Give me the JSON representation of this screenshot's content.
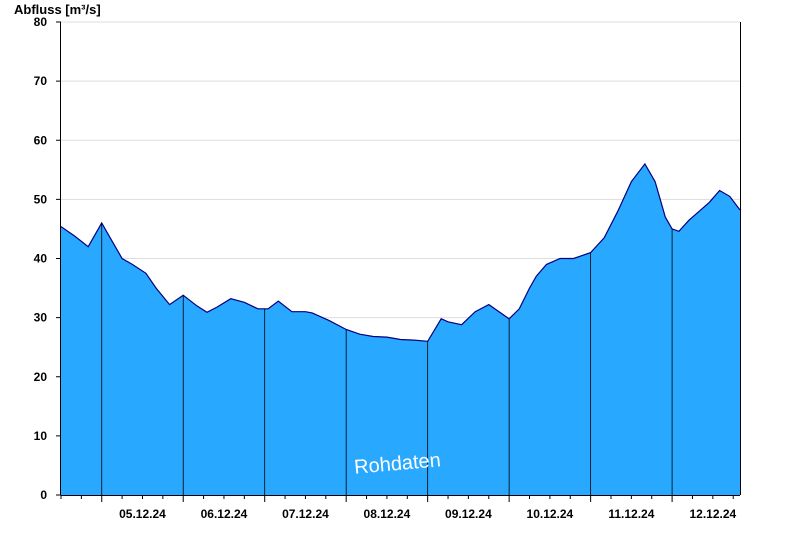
{
  "chart_data": {
    "type": "area",
    "ylabel": "Abfluss [m³/s]",
    "xlabel": "",
    "ylim": [
      0,
      80
    ],
    "yticks": [
      0,
      10,
      20,
      30,
      40,
      50,
      60,
      70,
      80
    ],
    "xlim": [
      "2024-12-04T12:00",
      "2024-12-12T20:00"
    ],
    "day_labels": [
      "05.12.24",
      "06.12.24",
      "07.12.24",
      "08.12.24",
      "09.12.24",
      "10.12.24",
      "11.12.24",
      "12.12.24"
    ],
    "grid": true,
    "legend": "none",
    "watermark": "Rohdaten",
    "colors": {
      "fill": "#29a8ff",
      "line": "#000080",
      "grid": "#dddddd"
    },
    "x": [
      "2024-12-04T12:00",
      "2024-12-04T16:00",
      "2024-12-04T20:00",
      "2024-12-05T00:00",
      "2024-12-05T03:00",
      "2024-12-05T06:00",
      "2024-12-05T09:00",
      "2024-12-05T13:00",
      "2024-12-05T16:00",
      "2024-12-05T20:00",
      "2024-12-06T00:00",
      "2024-12-06T04:00",
      "2024-12-06T07:00",
      "2024-12-06T10:00",
      "2024-12-06T14:00",
      "2024-12-06T18:00",
      "2024-12-06T22:00",
      "2024-12-07T01:00",
      "2024-12-07T04:00",
      "2024-12-07T08:00",
      "2024-12-07T12:00",
      "2024-12-07T14:00",
      "2024-12-07T19:00",
      "2024-12-08T00:00",
      "2024-12-08T04:00",
      "2024-12-08T08:00",
      "2024-12-08T12:00",
      "2024-12-08T16:00",
      "2024-12-08T20:00",
      "2024-12-09T00:00",
      "2024-12-09T04:00",
      "2024-12-09T06:00",
      "2024-12-09T10:00",
      "2024-12-09T14:00",
      "2024-12-09T18:00",
      "2024-12-10T00:00",
      "2024-12-10T03:00",
      "2024-12-10T06:00",
      "2024-12-10T08:00",
      "2024-12-10T11:00",
      "2024-12-10T15:00",
      "2024-12-10T19:00",
      "2024-12-11T00:00",
      "2024-12-11T04:00",
      "2024-12-11T08:00",
      "2024-12-11T12:00",
      "2024-12-11T16:00",
      "2024-12-11T19:00",
      "2024-12-11T22:00",
      "2024-12-12T00:00",
      "2024-12-12T02:00",
      "2024-12-12T05:00",
      "2024-12-12T08:00",
      "2024-12-12T11:00",
      "2024-12-12T14:00",
      "2024-12-12T17:00",
      "2024-12-12T20:00"
    ],
    "series": [
      {
        "values": [
          45.4,
          43.8,
          42.0,
          46.0,
          43.0,
          40.0,
          39.0,
          37.5,
          35.0,
          32.2,
          33.8,
          32.0,
          30.9,
          31.8,
          33.2,
          32.6,
          31.5,
          31.5,
          32.8,
          31.0,
          31.0,
          30.8,
          29.5,
          28.0,
          27.2,
          26.8,
          26.7,
          26.3,
          26.2,
          26.0,
          29.8,
          29.3,
          28.8,
          31.0,
          32.2,
          29.8,
          31.5,
          35.0,
          37.0,
          39.0,
          40.0,
          40.0,
          41.0,
          43.5,
          48.0,
          53.0,
          56.0,
          53.0,
          47.0,
          45.0,
          44.6,
          46.5,
          48.0,
          49.5,
          51.5,
          50.5,
          48.2
        ]
      }
    ]
  }
}
